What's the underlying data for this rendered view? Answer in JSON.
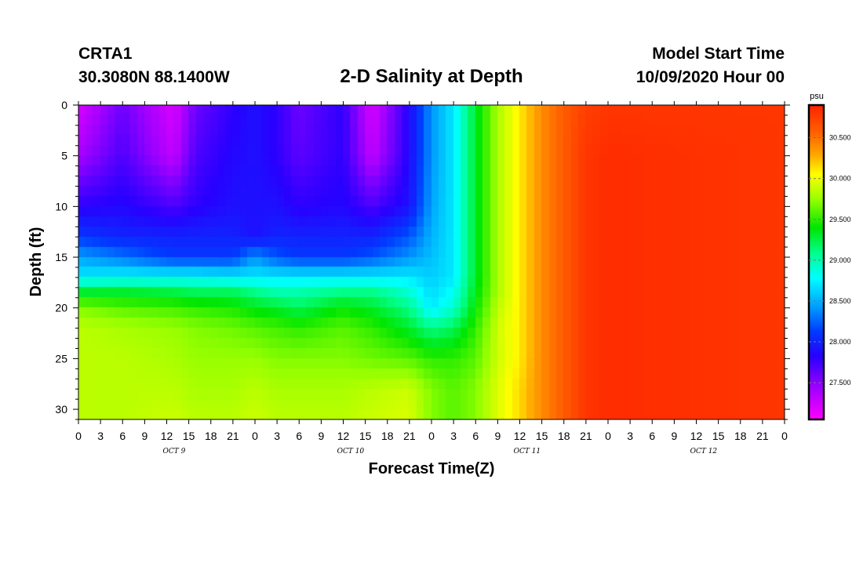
{
  "header": {
    "station": "CRTA1",
    "coords": "30.3080N 88.1400W",
    "title": "2-D Salinity at Depth",
    "model_start_label": "Model Start Time",
    "model_start_value": "10/09/2020 Hour 00"
  },
  "chart_data": {
    "type": "heatmap",
    "title": "2-D Salinity at Depth",
    "xlabel": "Forecast Time(Z)",
    "ylabel": "Depth (ft)",
    "x_unit": "hours since model start",
    "xlim": [
      0,
      96
    ],
    "ylim": [
      0,
      31
    ],
    "y_inverted": true,
    "x_tick_labels": [
      "0",
      "3",
      "6",
      "9",
      "12",
      "15",
      "18",
      "21",
      "0",
      "3",
      "6",
      "9",
      "12",
      "15",
      "18",
      "21",
      "0",
      "3",
      "6",
      "9",
      "12",
      "15",
      "18",
      "21",
      "0",
      "3",
      "6",
      "9",
      "12",
      "15",
      "18",
      "21",
      "0"
    ],
    "y_ticks": [
      0,
      5,
      10,
      15,
      20,
      25,
      30
    ],
    "day_labels": [
      "OCT 9",
      "OCT 10",
      "OCT 11",
      "OCT 12"
    ],
    "colorbar": {
      "unit": "psu",
      "range": [
        27.05,
        30.9
      ],
      "ticks": [
        "27.500",
        "28.000",
        "28.500",
        "29.000",
        "29.500",
        "30.000",
        "30.500"
      ]
    },
    "x_nodes_hours": [
      0,
      6,
      13,
      16,
      21,
      24,
      27,
      30,
      36,
      40,
      45,
      48,
      51,
      54,
      57,
      60,
      63,
      66,
      69,
      72,
      96
    ],
    "y_nodes_ft": [
      0,
      5,
      10,
      13,
      15,
      17,
      18.5,
      20,
      22,
      25,
      28,
      31
    ],
    "salinity_psu": [
      [
        27.2,
        27.6,
        27.2,
        27.6,
        27.8,
        27.9,
        27.8,
        27.6,
        27.8,
        27.2,
        27.85,
        28.4,
        28.7,
        29.3,
        29.8,
        30.1,
        30.4,
        30.6,
        30.75,
        30.8,
        30.8
      ],
      [
        27.4,
        27.7,
        27.3,
        27.7,
        27.85,
        27.9,
        27.8,
        27.65,
        27.8,
        27.3,
        27.85,
        28.4,
        28.7,
        29.3,
        29.8,
        30.1,
        30.4,
        30.6,
        30.8,
        30.85,
        30.8
      ],
      [
        27.8,
        27.85,
        27.7,
        27.8,
        27.9,
        27.9,
        27.9,
        27.8,
        27.85,
        27.7,
        27.9,
        28.45,
        28.7,
        29.3,
        29.8,
        30.1,
        30.4,
        30.6,
        30.8,
        30.85,
        30.8
      ],
      [
        28.1,
        28.0,
        28.0,
        28.0,
        28.0,
        27.9,
        28.0,
        28.0,
        28.0,
        28.0,
        28.2,
        28.5,
        28.7,
        29.3,
        29.8,
        30.1,
        30.4,
        30.6,
        30.8,
        30.85,
        30.8
      ],
      [
        28.45,
        28.3,
        28.1,
        28.1,
        28.1,
        28.4,
        28.2,
        28.1,
        28.1,
        28.2,
        28.4,
        28.55,
        28.7,
        29.3,
        29.8,
        30.1,
        30.4,
        30.6,
        30.8,
        30.85,
        30.8
      ],
      [
        28.7,
        28.75,
        28.75,
        28.75,
        28.7,
        28.7,
        28.7,
        28.7,
        28.7,
        28.7,
        28.7,
        28.6,
        28.7,
        29.3,
        29.8,
        30.1,
        30.4,
        30.6,
        30.8,
        30.85,
        30.8
      ],
      [
        29.3,
        29.3,
        29.25,
        29.2,
        29.2,
        29.1,
        29.0,
        29.0,
        29.1,
        29.1,
        28.9,
        28.65,
        28.8,
        29.35,
        29.8,
        30.1,
        30.4,
        30.6,
        30.8,
        30.85,
        30.8
      ],
      [
        29.7,
        29.6,
        29.55,
        29.5,
        29.45,
        29.35,
        29.3,
        29.2,
        29.4,
        29.3,
        29.1,
        28.7,
        28.9,
        29.4,
        29.85,
        30.1,
        30.4,
        30.6,
        30.8,
        30.85,
        30.8
      ],
      [
        29.85,
        29.8,
        29.75,
        29.7,
        29.65,
        29.6,
        29.55,
        29.5,
        29.6,
        29.5,
        29.3,
        29.1,
        29.2,
        29.5,
        29.9,
        30.1,
        30.4,
        30.6,
        30.8,
        30.85,
        30.8
      ],
      [
        29.85,
        29.85,
        29.8,
        29.75,
        29.75,
        29.75,
        29.7,
        29.7,
        29.7,
        29.65,
        29.6,
        29.5,
        29.5,
        29.6,
        29.9,
        30.1,
        30.4,
        30.6,
        30.8,
        30.85,
        30.8
      ],
      [
        29.85,
        29.85,
        29.85,
        29.8,
        29.8,
        29.85,
        29.8,
        29.8,
        29.8,
        29.85,
        29.9,
        29.7,
        29.6,
        29.7,
        29.95,
        30.15,
        30.4,
        30.6,
        30.8,
        30.85,
        30.8
      ],
      [
        29.85,
        29.85,
        29.9,
        29.85,
        29.85,
        29.9,
        29.85,
        29.85,
        29.85,
        29.9,
        29.95,
        29.7,
        29.6,
        29.7,
        29.95,
        30.15,
        30.4,
        30.6,
        30.8,
        30.85,
        30.8
      ]
    ]
  }
}
